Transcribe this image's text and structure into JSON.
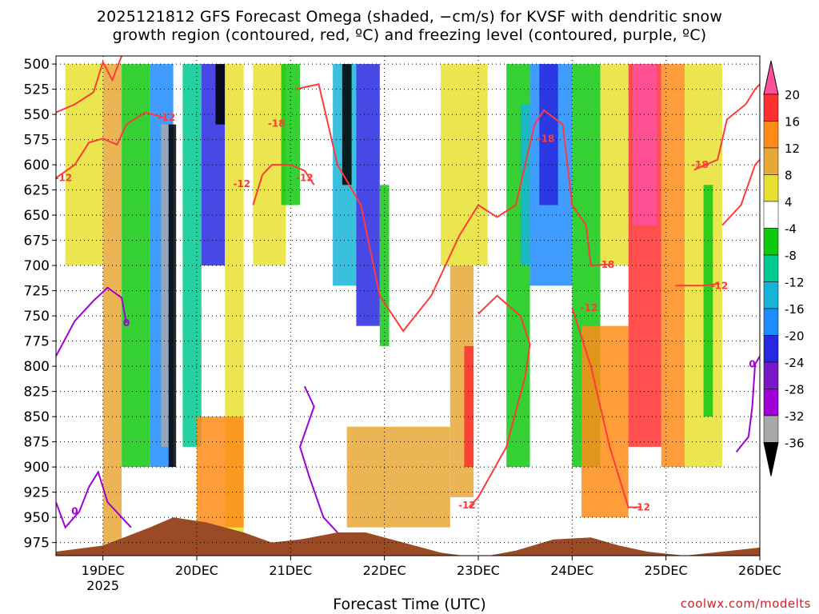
{
  "title_line1": "2025121812 GFS Forecast Omega (shaded, −cm/s) for KVSF with dendritic snow",
  "title_line2": "growth region (contoured, red, ºC) and freezing level (contoured, purple, ºC)",
  "credit": "coolwx.com/modelts",
  "chart_data": {
    "type": "heatmap",
    "title": "2025121812 GFS Forecast Omega (shaded, −cm/s) for KVSF with dendritic snow growth region (contoured, red, ºC) and freezing level (contoured, purple, ºC)",
    "xlabel": "Forecast Time (UTC)",
    "ylabel": "",
    "y_axis": {
      "ticks": [
        500,
        525,
        550,
        575,
        600,
        625,
        650,
        675,
        700,
        725,
        750,
        775,
        800,
        825,
        850,
        875,
        900,
        925,
        950,
        975
      ],
      "range": [
        988,
        492
      ],
      "inverted": true
    },
    "x_axis": {
      "ticks": [
        {
          "label": "19DEC",
          "sublabel": "2025",
          "day": 19
        },
        {
          "label": "20DEC",
          "day": 20
        },
        {
          "label": "21DEC",
          "day": 21
        },
        {
          "label": "22DEC",
          "day": 22
        },
        {
          "label": "23DEC",
          "day": 23
        },
        {
          "label": "24DEC",
          "day": 24
        },
        {
          "label": "25DEC",
          "day": 25
        },
        {
          "label": "26DEC",
          "day": 26
        }
      ],
      "range": [
        18.5,
        26.0
      ]
    },
    "grid": true,
    "colorbar": {
      "labels": [
        20,
        16,
        12,
        8,
        4,
        -4,
        -8,
        -12,
        -16,
        -20,
        -24,
        -28,
        -32,
        -36
      ],
      "colors": [
        "#ff50a0",
        "#ff3030",
        "#ff8c18",
        "#e8a838",
        "#e8e030",
        "#ffffff",
        "#10c810",
        "#00c890",
        "#18b4d8",
        "#1e8cff",
        "#2828e0",
        "#7818c8",
        "#a000d8",
        "#a8a8a8",
        "#000000"
      ]
    },
    "contour_labels": [
      {
        "text": "-12",
        "color": "#ff3a3a",
        "day": 18.58,
        "p": 613
      },
      {
        "text": "-12",
        "color": "#ff3a3a",
        "day": 19.68,
        "p": 553
      },
      {
        "text": "-18",
        "color": "#ff3a3a",
        "day": 20.85,
        "p": 559
      },
      {
        "text": "-12",
        "color": "#ff3a3a",
        "day": 20.48,
        "p": 619
      },
      {
        "text": "-12",
        "color": "#ff3a3a",
        "day": 21.15,
        "p": 613
      },
      {
        "text": "-18",
        "color": "#ff3a3a",
        "day": 23.72,
        "p": 574
      },
      {
        "text": "-18",
        "color": "#ff3a3a",
        "day": 25.36,
        "p": 600
      },
      {
        "text": "-18",
        "color": "#ff3a3a",
        "day": 24.36,
        "p": 699
      },
      {
        "text": "-12",
        "color": "#ff3a3a",
        "day": 25.57,
        "p": 720
      },
      {
        "text": "-12",
        "color": "#ff3a3a",
        "day": 24.18,
        "p": 742
      },
      {
        "text": "-12",
        "color": "#ff3a3a",
        "day": 22.88,
        "p": 938
      },
      {
        "text": "-12",
        "color": "#ff3a3a",
        "day": 24.74,
        "p": 940
      },
      {
        "text": "0",
        "color": "#a000d8",
        "day": 19.25,
        "p": 757
      },
      {
        "text": "0",
        "color": "#a000d8",
        "day": 18.7,
        "p": 944
      },
      {
        "text": "0",
        "color": "#a000d8",
        "day": 25.92,
        "p": 798
      }
    ],
    "series": [
      {
        "color": "#ff3a3a",
        "points": [
          [
            18.5,
            548
          ],
          [
            18.7,
            540
          ],
          [
            18.9,
            528
          ],
          [
            19.0,
            498
          ],
          [
            19.1,
            516
          ],
          [
            19.2,
            492
          ]
        ]
      },
      {
        "color": "#ff3a3a",
        "points": [
          [
            18.5,
            613
          ],
          [
            18.7,
            600
          ],
          [
            18.85,
            578
          ],
          [
            19.0,
            574
          ],
          [
            19.15,
            580
          ],
          [
            19.25,
            560
          ],
          [
            19.45,
            548
          ],
          [
            19.65,
            553
          ]
        ]
      },
      {
        "color": "#ff3a3a",
        "points": [
          [
            20.6,
            640
          ],
          [
            20.7,
            610
          ],
          [
            20.8,
            600
          ],
          [
            21.0,
            600
          ],
          [
            21.15,
            606
          ],
          [
            21.25,
            620
          ]
        ]
      },
      {
        "color": "#ff3a3a",
        "points": [
          [
            21.05,
            525
          ],
          [
            21.3,
            520
          ],
          [
            21.5,
            600
          ],
          [
            21.75,
            640
          ],
          [
            21.95,
            730
          ],
          [
            22.2,
            765
          ],
          [
            22.5,
            730
          ],
          [
            22.8,
            670
          ],
          [
            23.0,
            640
          ],
          [
            23.2,
            652
          ],
          [
            23.4,
            640
          ],
          [
            23.6,
            560
          ],
          [
            23.7,
            546
          ],
          [
            23.9,
            560
          ],
          [
            24.0,
            640
          ],
          [
            24.15,
            660
          ],
          [
            24.2,
            700
          ],
          [
            24.4,
            699
          ]
        ]
      },
      {
        "color": "#ff3a3a",
        "points": [
          [
            23.0,
            748
          ],
          [
            23.2,
            730
          ],
          [
            23.45,
            750
          ],
          [
            23.55,
            778
          ],
          [
            23.5,
            810
          ],
          [
            23.3,
            880
          ],
          [
            23.0,
            930
          ],
          [
            22.9,
            940
          ]
        ]
      },
      {
        "color": "#ff3a3a",
        "points": [
          [
            24.0,
            742
          ],
          [
            24.2,
            800
          ],
          [
            24.4,
            880
          ],
          [
            24.6,
            940
          ],
          [
            24.74,
            940
          ]
        ]
      },
      {
        "color": "#ff3a3a",
        "points": [
          [
            25.1,
            720
          ],
          [
            25.4,
            720
          ],
          [
            25.57,
            718
          ]
        ]
      },
      {
        "color": "#ff3a3a",
        "points": [
          [
            25.3,
            605
          ],
          [
            25.55,
            595
          ],
          [
            25.65,
            555
          ],
          [
            25.85,
            540
          ],
          [
            25.95,
            525
          ],
          [
            26.0,
            520
          ]
        ]
      },
      {
        "color": "#ff3a3a",
        "points": [
          [
            25.6,
            660
          ],
          [
            25.8,
            640
          ],
          [
            25.95,
            600
          ],
          [
            26.0,
            595
          ]
        ]
      },
      {
        "color": "#a000d8",
        "points": [
          [
            18.5,
            790
          ],
          [
            18.7,
            755
          ],
          [
            18.9,
            735
          ],
          [
            19.05,
            722
          ],
          [
            19.2,
            732
          ],
          [
            19.25,
            757
          ]
        ]
      },
      {
        "color": "#a000d8",
        "points": [
          [
            18.5,
            935
          ],
          [
            18.6,
            960
          ],
          [
            18.75,
            944
          ],
          [
            18.85,
            920
          ],
          [
            18.95,
            905
          ],
          [
            19.05,
            935
          ],
          [
            19.3,
            960
          ]
        ]
      },
      {
        "color": "#a000d8",
        "points": [
          [
            25.75,
            885
          ],
          [
            25.88,
            870
          ],
          [
            25.92,
            840
          ],
          [
            25.95,
            798
          ],
          [
            26.0,
            790
          ]
        ]
      },
      {
        "color": "#a000d8",
        "points": [
          [
            21.15,
            820
          ],
          [
            21.25,
            840
          ],
          [
            21.1,
            880
          ],
          [
            21.2,
            910
          ],
          [
            21.35,
            950
          ],
          [
            21.5,
            965
          ]
        ]
      }
    ]
  }
}
